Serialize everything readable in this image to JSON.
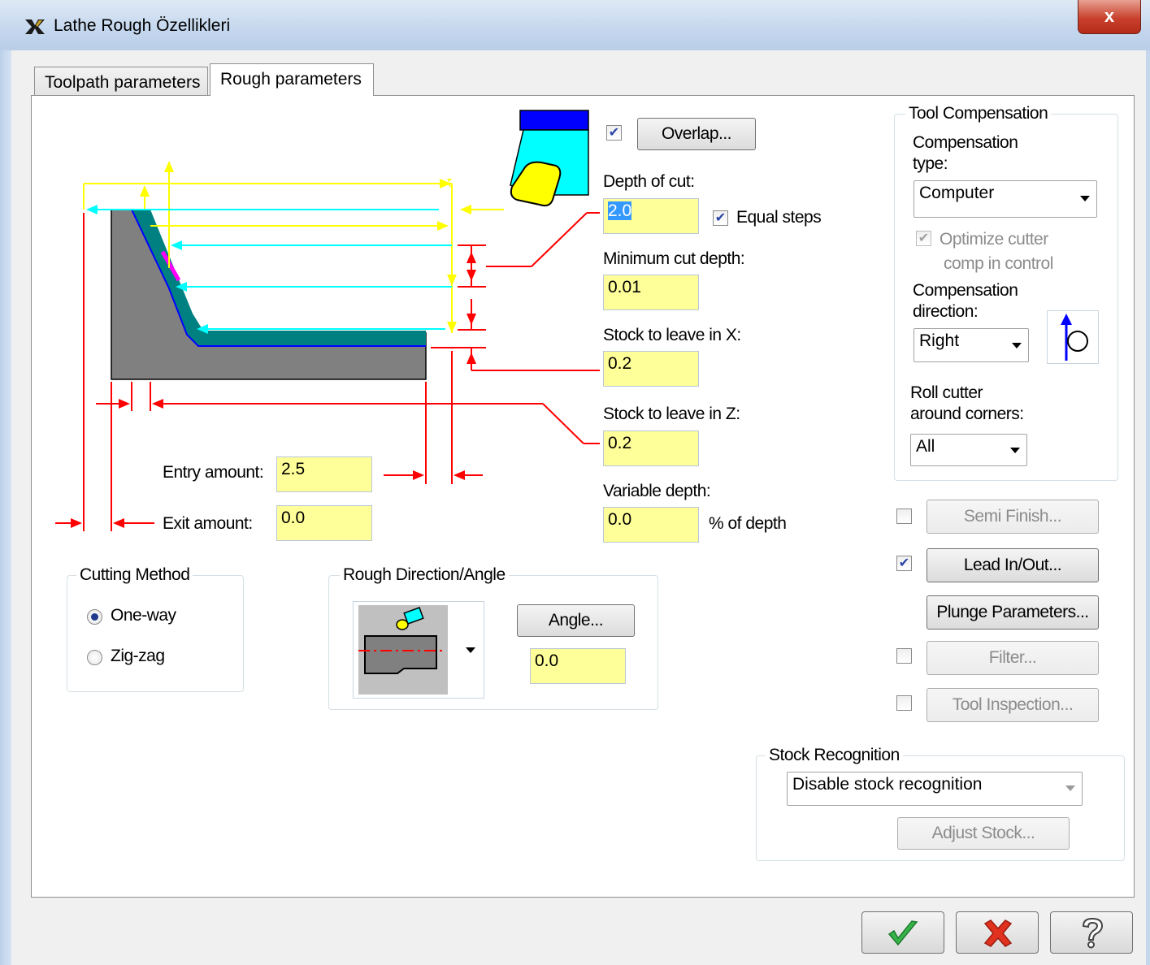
{
  "window": {
    "title": "Lathe Rough Özellikleri",
    "close_label": "x"
  },
  "tabs": [
    {
      "label": "Toolpath parameters",
      "active": false
    },
    {
      "label": "Rough parameters",
      "active": true
    }
  ],
  "overlap": {
    "checked": true,
    "button_label": "Overlap..."
  },
  "depth_of_cut": {
    "label": "Depth of cut:",
    "value": "2.0",
    "equal_steps_label": "Equal steps",
    "equal_steps_checked": true
  },
  "minimum_cut_depth": {
    "label": "Minimum cut depth:",
    "value": "0.01"
  },
  "stock_x": {
    "label": "Stock to leave in X:",
    "value": "0.2"
  },
  "stock_z": {
    "label": "Stock to leave in Z:",
    "value": "0.2"
  },
  "variable_depth": {
    "label": "Variable depth:",
    "value": "0.0",
    "suffix": "% of depth"
  },
  "entry_amount": {
    "label": "Entry amount:",
    "value": "2.5"
  },
  "exit_amount": {
    "label": "Exit amount:",
    "value": "0.0"
  },
  "tool_compensation": {
    "title": "Tool Compensation",
    "type_label_1": "Compensation",
    "type_label_2": "type:",
    "type_value": "Computer",
    "optimize_label_1": "Optimize cutter",
    "optimize_label_2": "comp in control",
    "optimize_checked": true,
    "direction_label_1": "Compensation",
    "direction_label_2": "direction:",
    "direction_value": "Right",
    "roll_label_1": "Roll cutter",
    "roll_label_2": "around corners:",
    "roll_value": "All"
  },
  "side_buttons": [
    {
      "label": "Semi Finish...",
      "checked": false,
      "enabled": false
    },
    {
      "label": "Lead In/Out...",
      "checked": true,
      "enabled": true
    },
    {
      "label": "Plunge Parameters...",
      "enabled": true
    },
    {
      "label": "Filter...",
      "checked": false,
      "enabled": false
    },
    {
      "label": "Tool Inspection...",
      "checked": false,
      "enabled": false
    }
  ],
  "cutting_method": {
    "title": "Cutting Method",
    "options": [
      {
        "label": "One-way",
        "selected": true
      },
      {
        "label": "Zig-zag",
        "selected": false
      }
    ]
  },
  "rough_direction": {
    "title": "Rough Direction/Angle",
    "angle_button": "Angle...",
    "angle_value": "0.0"
  },
  "stock_recognition": {
    "title": "Stock Recognition",
    "value": "Disable stock recognition",
    "adjust_button": "Adjust Stock..."
  },
  "colors": {
    "field": "#ffff99",
    "cyan": "#00ffff",
    "yellow": "#ffff00",
    "red": "#ff0000",
    "teal": "#008080",
    "gray": "#808080"
  }
}
